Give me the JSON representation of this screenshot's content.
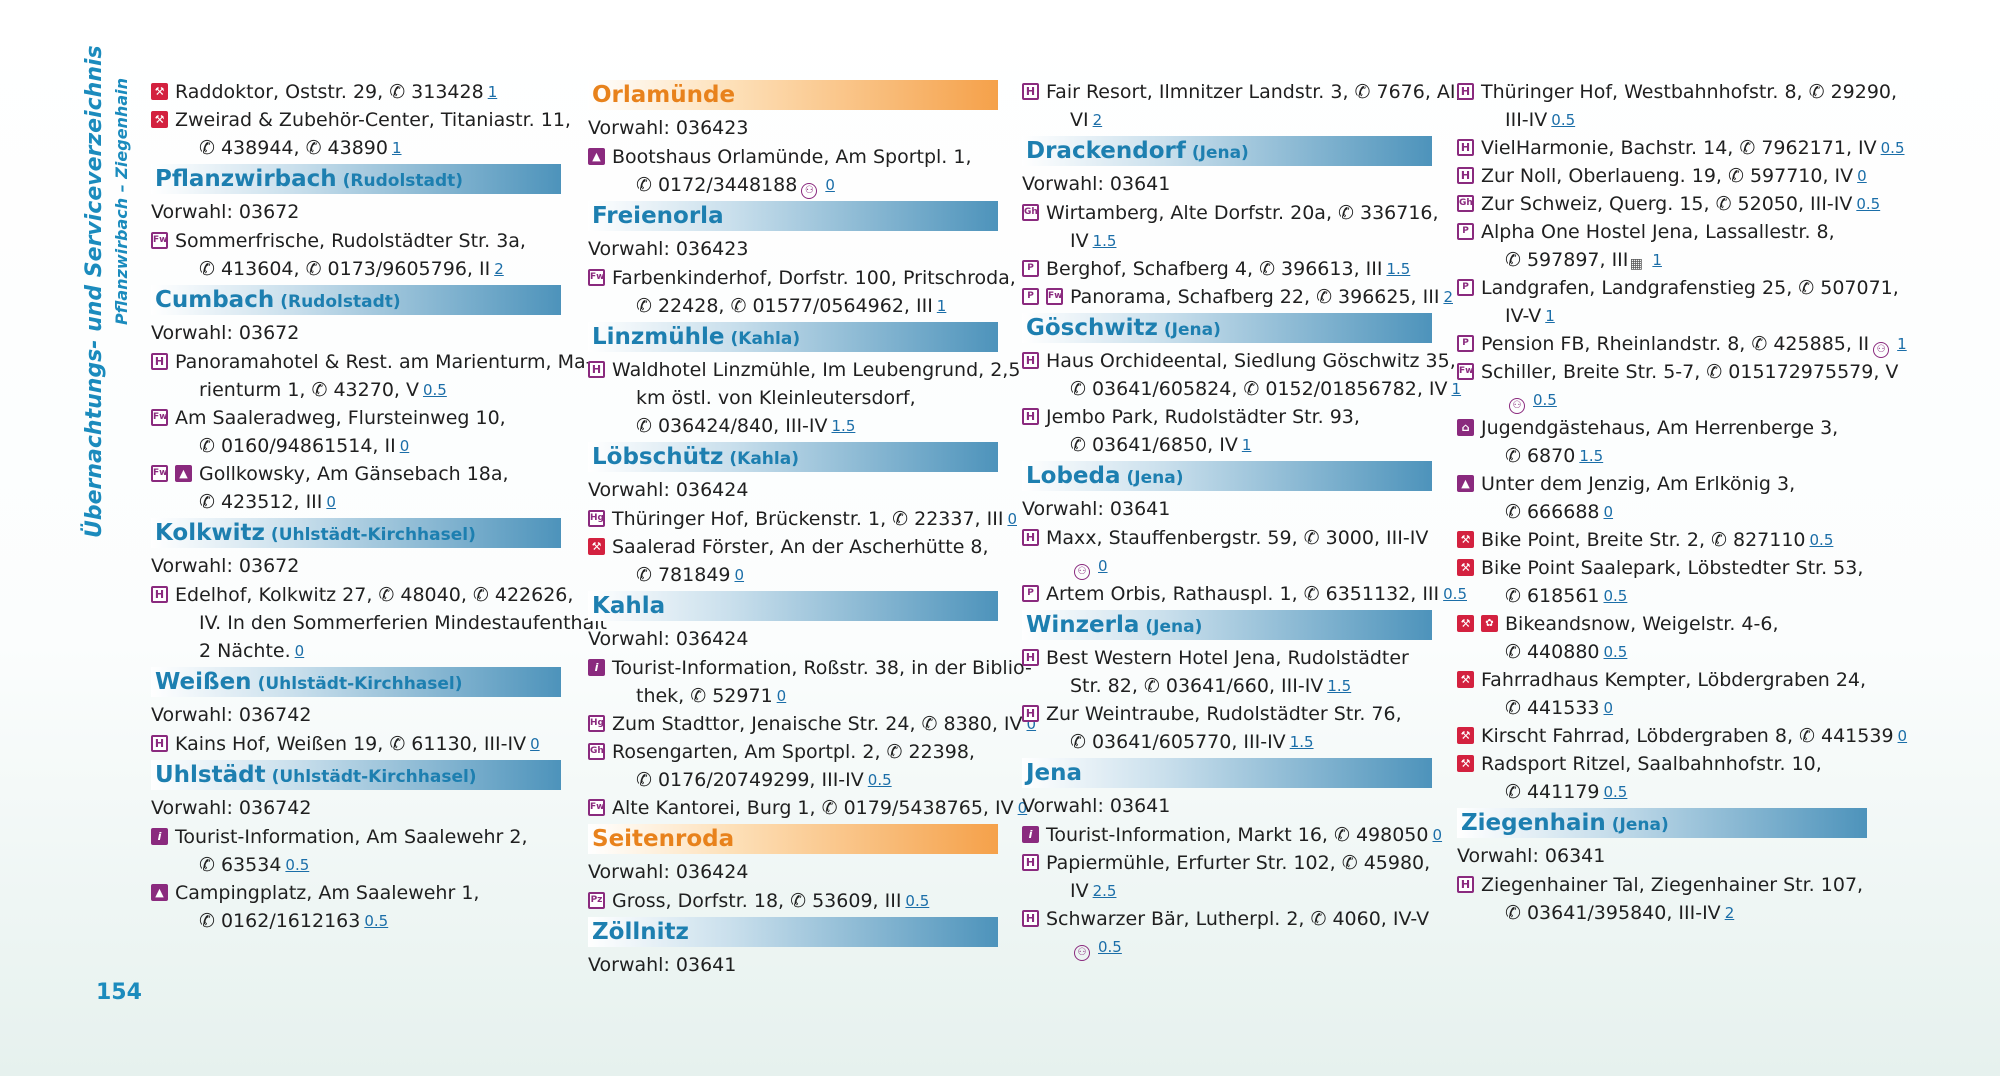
{
  "sidebar": {
    "title": "Übernachtungs- und Serviceverzeichnis",
    "subtitle": "Pflanzwirbach – Ziegenhain"
  },
  "page_number": "154",
  "icons": {
    "H": "hotel-icon",
    "Fw": "holiday-flat-icon",
    "Hg": "guesthouse-icon",
    "Gh": "guesthouse-gh-icon",
    "Pz": "private-room-icon",
    "P": "pension-icon",
    "bike": "bike-service-icon",
    "camp": "campsite-icon",
    "info": "tourist-info-icon",
    "jh": "youth-hostel-icon",
    "rent": "bike-rental-icon",
    "pay": "bike-friendly-icon",
    "laundry": "laundry-icon",
    "phone": "phone-icon"
  },
  "columns": [
    [
      {
        "type": "entry",
        "icons": [
          "bike"
        ],
        "lines": [
          {
            "text": "Raddoktor, Oststr. 29, ✆ 313428",
            "dist": "1"
          }
        ]
      },
      {
        "type": "entry",
        "icons": [
          "bike"
        ],
        "lines": [
          {
            "text": "Zweirad & Zubehör-Center, Titaniastr. 11,"
          },
          {
            "text": "✆ 438944, ✆ 43890",
            "dist": "1"
          }
        ]
      },
      {
        "type": "heading",
        "name": "Pflanzwirbach",
        "sub": "(Rudolstadt)"
      },
      {
        "type": "vorwahl",
        "text": "Vorwahl: 03672"
      },
      {
        "type": "entry",
        "icons": [
          "Fw"
        ],
        "lines": [
          {
            "text": "Sommerfrische, Rudolstädter Str. 3a,"
          },
          {
            "text": "✆ 413604, ✆ 0173/9605796, II",
            "dist": "2"
          }
        ]
      },
      {
        "type": "heading",
        "name": "Cumbach",
        "sub": "(Rudolstadt)"
      },
      {
        "type": "vorwahl",
        "text": "Vorwahl: 03672"
      },
      {
        "type": "entry",
        "icons": [
          "H"
        ],
        "lines": [
          {
            "text": "Panoramahotel & Rest. am Marienturm, Ma-"
          },
          {
            "text": "rienturm 1, ✆ 43270, V",
            "dist": "0.5"
          }
        ]
      },
      {
        "type": "entry",
        "icons": [
          "Fw"
        ],
        "lines": [
          {
            "text": "Am Saaleradweg, Flursteinweg 10,"
          },
          {
            "text": "✆ 0160/94861514, II",
            "dist": "0"
          }
        ]
      },
      {
        "type": "entry",
        "icons": [
          "Fw",
          "camp"
        ],
        "lines": [
          {
            "text": "Gollkowsky, Am Gänsebach 18a,"
          },
          {
            "text": "✆ 423512, III",
            "dist": "0"
          }
        ]
      },
      {
        "type": "heading",
        "name": "Kolkwitz",
        "sub": "(Uhlstädt-Kirchhasel)"
      },
      {
        "type": "vorwahl",
        "text": "Vorwahl: 03672"
      },
      {
        "type": "entry",
        "icons": [
          "H"
        ],
        "lines": [
          {
            "text": "Edelhof, Kolkwitz 27, ✆ 48040, ✆ 422626,"
          },
          {
            "text": "IV. In den Sommerferien Mindestaufenthalt"
          },
          {
            "text": "2 Nächte.",
            "dist": "0"
          }
        ]
      },
      {
        "type": "heading",
        "name": "Weißen",
        "sub": "(Uhlstädt-Kirchhasel)"
      },
      {
        "type": "vorwahl",
        "text": "Vorwahl: 036742"
      },
      {
        "type": "entry",
        "icons": [
          "H"
        ],
        "lines": [
          {
            "text": "Kains Hof, Weißen 19, ✆ 61130, III-IV",
            "dist": "0"
          }
        ]
      },
      {
        "type": "heading",
        "name": "Uhlstädt",
        "sub": "(Uhlstädt-Kirchhasel)"
      },
      {
        "type": "vorwahl",
        "text": "Vorwahl: 036742"
      },
      {
        "type": "entry",
        "icons": [
          "info"
        ],
        "lines": [
          {
            "text": "Tourist-Information, Am Saalewehr 2,"
          },
          {
            "text": "✆ 63534",
            "dist": "0.5"
          }
        ]
      },
      {
        "type": "entry",
        "icons": [
          "camp"
        ],
        "lines": [
          {
            "text": "Campingplatz, Am Saalewehr 1,"
          },
          {
            "text": "✆ 0162/1612163",
            "dist": "0.5"
          }
        ]
      }
    ],
    [
      {
        "type": "heading",
        "name": "Orlamünde",
        "sub": "",
        "orange": true
      },
      {
        "type": "vorwahl",
        "text": "Vorwahl: 036423"
      },
      {
        "type": "entry",
        "icons": [
          "camp"
        ],
        "lines": [
          {
            "text": "Bootshaus Orlamünde, Am Sportpl. 1,"
          },
          {
            "text": "✆ 0172/3448188",
            "pay": true,
            "dist": "0"
          }
        ]
      },
      {
        "type": "heading",
        "name": "Freienorla",
        "sub": ""
      },
      {
        "type": "vorwahl",
        "text": "Vorwahl: 036423"
      },
      {
        "type": "entry",
        "icons": [
          "Fw"
        ],
        "lines": [
          {
            "text": "Farbenkinderhof, Dorfstr. 100, Pritschroda,"
          },
          {
            "text": "✆ 22428, ✆ 01577/0564962, III",
            "dist": "1"
          }
        ]
      },
      {
        "type": "heading",
        "name": "Linzmühle",
        "sub": "(Kahla)"
      },
      {
        "type": "entry",
        "icons": [
          "H"
        ],
        "lines": [
          {
            "text": "Waldhotel Linzmühle, Im Leubengrund, 2,5"
          },
          {
            "text": "km östl. von Kleinleutersdorf,"
          },
          {
            "text": "✆ 036424/840, III-IV",
            "dist": "1.5"
          }
        ]
      },
      {
        "type": "heading",
        "name": "Löbschütz",
        "sub": "(Kahla)"
      },
      {
        "type": "vorwahl",
        "text": "Vorwahl: 036424"
      },
      {
        "type": "entry",
        "icons": [
          "Hg"
        ],
        "lines": [
          {
            "text": "Thüringer Hof, Brückenstr. 1, ✆ 22337, III",
            "dist": "0"
          }
        ]
      },
      {
        "type": "entry",
        "icons": [
          "bike"
        ],
        "lines": [
          {
            "text": "Saalerad Förster, An der Ascherhütte 8,"
          },
          {
            "text": "✆ 781849",
            "dist": "0"
          }
        ]
      },
      {
        "type": "heading",
        "name": "Kahla",
        "sub": ""
      },
      {
        "type": "vorwahl",
        "text": "Vorwahl: 036424"
      },
      {
        "type": "entry",
        "icons": [
          "info"
        ],
        "lines": [
          {
            "text": "Tourist-Information, Roßstr. 38, in der Biblio-"
          },
          {
            "text": "thek, ✆ 52971",
            "dist": "0"
          }
        ]
      },
      {
        "type": "entry",
        "icons": [
          "Hg"
        ],
        "lines": [
          {
            "text": "Zum Stadttor, Jenaische Str. 24, ✆ 8380, IV",
            "dist": "0"
          }
        ]
      },
      {
        "type": "entry",
        "icons": [
          "Gh"
        ],
        "lines": [
          {
            "text": "Rosengarten, Am Sportpl. 2, ✆ 22398,"
          },
          {
            "text": "✆ 0176/20749299, III-IV",
            "dist": "0.5"
          }
        ]
      },
      {
        "type": "entry",
        "icons": [
          "Fw"
        ],
        "lines": [
          {
            "text": "Alte Kantorei, Burg 1, ✆ 0179/5438765, IV",
            "dist": "0"
          }
        ]
      },
      {
        "type": "heading",
        "name": "Seitenroda",
        "sub": "",
        "orange": true
      },
      {
        "type": "vorwahl",
        "text": "Vorwahl: 036424"
      },
      {
        "type": "entry",
        "icons": [
          "Pz"
        ],
        "lines": [
          {
            "text": "Gross, Dorfstr. 18, ✆ 53609, III",
            "dist": "0.5"
          }
        ]
      },
      {
        "type": "heading",
        "name": "Zöllnitz",
        "sub": ""
      },
      {
        "type": "vorwahl",
        "text": "Vorwahl: 03641"
      }
    ],
    [
      {
        "type": "entry",
        "icons": [
          "H"
        ],
        "lines": [
          {
            "text": "Fair Resort, Ilmnitzer Landstr. 3, ✆ 7676, AI,"
          },
          {
            "text": "VI",
            "dist": "2"
          }
        ]
      },
      {
        "type": "heading",
        "name": "Drackendorf",
        "sub": "(Jena)"
      },
      {
        "type": "vorwahl",
        "text": "Vorwahl: 03641"
      },
      {
        "type": "entry",
        "icons": [
          "Gh"
        ],
        "lines": [
          {
            "text": "Wirtamberg, Alte Dorfstr. 20a, ✆ 336716,"
          },
          {
            "text": "IV",
            "dist": "1.5"
          }
        ]
      },
      {
        "type": "entry",
        "icons": [
          "P"
        ],
        "lines": [
          {
            "text": "Berghof, Schafberg 4, ✆ 396613, III",
            "dist": "1.5"
          }
        ]
      },
      {
        "type": "entry",
        "icons": [
          "P",
          "Fw"
        ],
        "lines": [
          {
            "text": "Panorama, Schafberg 22, ✆ 396625, III",
            "dist": "2"
          }
        ]
      },
      {
        "type": "heading",
        "name": "Göschwitz",
        "sub": "(Jena)"
      },
      {
        "type": "entry",
        "icons": [
          "H"
        ],
        "lines": [
          {
            "text": "Haus Orchideental, Siedlung Göschwitz 35,"
          },
          {
            "text": "✆ 03641/605824, ✆ 0152/01856782, IV",
            "dist": "1"
          }
        ]
      },
      {
        "type": "entry",
        "icons": [
          "H"
        ],
        "lines": [
          {
            "text": "Jembo Park, Rudolstädter Str. 93,"
          },
          {
            "text": "✆ 03641/6850, IV",
            "dist": "1"
          }
        ]
      },
      {
        "type": "heading",
        "name": "Lobeda",
        "sub": "(Jena)"
      },
      {
        "type": "vorwahl",
        "text": "Vorwahl: 03641"
      },
      {
        "type": "entry",
        "icons": [
          "H"
        ],
        "lines": [
          {
            "text": "Maxx, Stauffenbergstr. 59, ✆ 3000, III-IV"
          },
          {
            "text": "",
            "pay": true,
            "dist": "0"
          }
        ]
      },
      {
        "type": "entry",
        "icons": [
          "P"
        ],
        "lines": [
          {
            "text": "Artem Orbis, Rathauspl. 1, ✆ 6351132, III",
            "dist": "0.5"
          }
        ]
      },
      {
        "type": "heading",
        "name": "Winzerla",
        "sub": "(Jena)"
      },
      {
        "type": "entry",
        "icons": [
          "H"
        ],
        "lines": [
          {
            "text": "Best Western Hotel Jena, Rudolstädter"
          },
          {
            "text": "Str. 82, ✆ 03641/660, III-IV",
            "dist": "1.5"
          }
        ]
      },
      {
        "type": "entry",
        "icons": [
          "H"
        ],
        "lines": [
          {
            "text": "Zur Weintraube, Rudolstädter Str. 76,"
          },
          {
            "text": "✆ 03641/605770, III-IV",
            "dist": "1.5"
          }
        ]
      },
      {
        "type": "heading",
        "name": "Jena",
        "sub": ""
      },
      {
        "type": "vorwahl",
        "text": "Vorwahl: 03641"
      },
      {
        "type": "entry",
        "icons": [
          "info"
        ],
        "lines": [
          {
            "text": "Tourist-Information, Markt 16, ✆ 498050",
            "dist": "0"
          }
        ]
      },
      {
        "type": "entry",
        "icons": [
          "H"
        ],
        "lines": [
          {
            "text": "Papiermühle, Erfurter Str. 102, ✆ 45980,"
          },
          {
            "text": "IV",
            "dist": "2.5"
          }
        ]
      },
      {
        "type": "entry",
        "icons": [
          "H"
        ],
        "lines": [
          {
            "text": "Schwarzer Bär, Lutherpl. 2, ✆ 4060, IV-V"
          },
          {
            "text": "",
            "pay": true,
            "dist": "0.5"
          }
        ]
      }
    ],
    [
      {
        "type": "entry",
        "icons": [
          "H"
        ],
        "lines": [
          {
            "text": "Thüringer Hof, Westbahnhofstr. 8, ✆ 29290,"
          },
          {
            "text": "III-IV",
            "dist": "0.5"
          }
        ]
      },
      {
        "type": "entry",
        "icons": [
          "H"
        ],
        "lines": [
          {
            "text": "VielHarmonie, Bachstr. 14, ✆ 7962171, IV",
            "dist": "0.5"
          }
        ]
      },
      {
        "type": "entry",
        "icons": [
          "H"
        ],
        "lines": [
          {
            "text": "Zur Noll, Oberlaueng. 19, ✆ 597710, IV",
            "dist": "0"
          }
        ]
      },
      {
        "type": "entry",
        "icons": [
          "Gh"
        ],
        "lines": [
          {
            "text": "Zur Schweiz, Querg. 15, ✆ 52050, III-IV",
            "dist": "0.5"
          }
        ]
      },
      {
        "type": "entry",
        "icons": [
          "P"
        ],
        "lines": [
          {
            "text": "Alpha One Hostel Jena, Lassallestr. 8,"
          },
          {
            "text": "✆ 597897, III",
            "laundry": true,
            "dist": "1"
          }
        ]
      },
      {
        "type": "entry",
        "icons": [
          "P"
        ],
        "lines": [
          {
            "text": "Landgrafen, Landgrafenstieg 25, ✆ 507071,"
          },
          {
            "text": "IV-V",
            "dist": "1"
          }
        ]
      },
      {
        "type": "entry",
        "icons": [
          "P"
        ],
        "lines": [
          {
            "text": "Pension FB, Rheinlandstr. 8, ✆ 425885, II",
            "pay": true,
            "dist": "1"
          }
        ]
      },
      {
        "type": "entry",
        "icons": [
          "Fw"
        ],
        "lines": [
          {
            "text": "Schiller, Breite Str. 5-7, ✆ 015172975579, V"
          },
          {
            "text": "",
            "pay": true,
            "dist": "0.5"
          }
        ]
      },
      {
        "type": "entry",
        "icons": [
          "jh"
        ],
        "lines": [
          {
            "text": "Jugendgästehaus, Am Herrenberge 3,"
          },
          {
            "text": "✆ 6870",
            "dist": "1.5"
          }
        ]
      },
      {
        "type": "entry",
        "icons": [
          "camp"
        ],
        "lines": [
          {
            "text": "Unter dem Jenzig, Am Erlkönig 3,"
          },
          {
            "text": "✆ 666688",
            "dist": "0"
          }
        ]
      },
      {
        "type": "entry",
        "icons": [
          "bike"
        ],
        "lines": [
          {
            "text": "Bike Point, Breite Str. 2, ✆ 827110",
            "dist": "0.5"
          }
        ]
      },
      {
        "type": "entry",
        "icons": [
          "bike"
        ],
        "lines": [
          {
            "text": "Bike Point Saalepark, Löbstedter Str. 53,"
          },
          {
            "text": "✆ 618561",
            "dist": "0.5"
          }
        ]
      },
      {
        "type": "entry",
        "icons": [
          "bike",
          "rent"
        ],
        "lines": [
          {
            "text": "Bikeandsnow, Weigelstr. 4-6,"
          },
          {
            "text": "✆ 440880",
            "dist": "0.5"
          }
        ]
      },
      {
        "type": "entry",
        "icons": [
          "bike"
        ],
        "lines": [
          {
            "text": "Fahrradhaus Kempter, Löbdergraben 24,"
          },
          {
            "text": "✆ 441533",
            "dist": "0"
          }
        ]
      },
      {
        "type": "entry",
        "icons": [
          "bike"
        ],
        "lines": [
          {
            "text": "Kirscht Fahrrad, Löbdergraben 8, ✆ 441539",
            "dist": "0"
          }
        ]
      },
      {
        "type": "entry",
        "icons": [
          "bike"
        ],
        "lines": [
          {
            "text": "Radsport Ritzel, Saalbahnhofstr. 10,"
          },
          {
            "text": "✆ 441179",
            "dist": "0.5"
          }
        ]
      },
      {
        "type": "heading",
        "name": "Ziegenhain",
        "sub": "(Jena)"
      },
      {
        "type": "vorwahl",
        "text": "Vorwahl: 06341"
      },
      {
        "type": "entry",
        "icons": [
          "H"
        ],
        "lines": [
          {
            "text": "Ziegenhainer Tal, Ziegenhainer Str. 107,"
          },
          {
            "text": "✆ 03641/395840, III-IV",
            "dist": "2"
          }
        ]
      }
    ]
  ]
}
